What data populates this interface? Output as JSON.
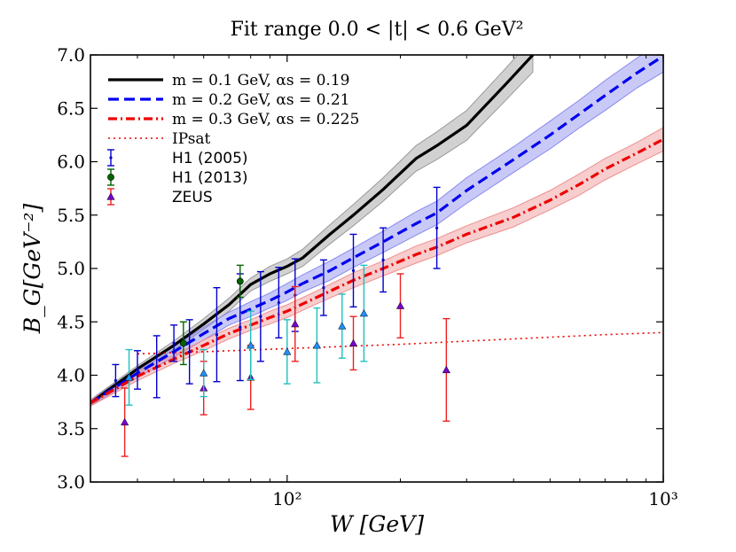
{
  "chart_data": {
    "type": "line",
    "title": "Fit range 0.0 < |t| < 0.6 GeV²",
    "xlabel": "W [GeV]",
    "ylabel": "B_G[GeV⁻²]",
    "xscale": "log",
    "xlim": [
      30,
      1000
    ],
    "ylim": [
      3.0,
      7.0
    ],
    "grid": false,
    "legend_position": "top-left",
    "x_ticks": [
      {
        "value": 100,
        "label": "10²"
      },
      {
        "value": 1000,
        "label": "10³"
      }
    ],
    "y_ticks": [
      3.0,
      3.5,
      4.0,
      4.5,
      5.0,
      5.5,
      6.0,
      6.5,
      7.0
    ],
    "y_tick_labels": [
      "3.0",
      "3.5",
      "4.0",
      "4.5",
      "5.0",
      "5.5",
      "6.0",
      "6.5",
      "7.0"
    ],
    "series": [
      {
        "name": "m = 0.1 GeV, αs = 0.19",
        "color": "#000000",
        "style": "solid",
        "band_color": "#9a9a9a",
        "x": [
          30,
          40,
          50,
          60,
          70,
          80,
          90,
          100,
          110,
          130,
          150,
          180,
          220,
          250,
          300,
          380,
          450
        ],
        "y": [
          3.74,
          4.06,
          4.28,
          4.48,
          4.66,
          4.85,
          4.95,
          5.02,
          5.1,
          5.32,
          5.5,
          5.74,
          6.03,
          6.15,
          6.34,
          6.72,
          7.0
        ],
        "band": [
          0.03,
          0.03,
          0.04,
          0.05,
          0.06,
          0.06,
          0.07,
          0.07,
          0.08,
          0.09,
          0.1,
          0.11,
          0.12,
          0.13,
          0.14,
          0.15,
          0.16
        ]
      },
      {
        "name": "m = 0.2 GeV, αs = 0.21",
        "color": "#0000ee",
        "style": "dashed",
        "band_color": "#8888ee",
        "x": [
          30,
          40,
          50,
          60,
          70,
          80,
          90,
          100,
          110,
          130,
          150,
          180,
          220,
          250,
          300,
          400,
          500,
          600,
          700,
          850,
          1000
        ],
        "y": [
          3.74,
          4.02,
          4.22,
          4.39,
          4.53,
          4.62,
          4.7,
          4.78,
          4.86,
          4.98,
          5.1,
          5.25,
          5.42,
          5.52,
          5.73,
          6.02,
          6.25,
          6.45,
          6.62,
          6.83,
          6.99
        ],
        "band": [
          0.03,
          0.04,
          0.05,
          0.06,
          0.06,
          0.07,
          0.07,
          0.08,
          0.08,
          0.09,
          0.09,
          0.1,
          0.11,
          0.11,
          0.12,
          0.12,
          0.13,
          0.13,
          0.14,
          0.14,
          0.15
        ]
      },
      {
        "name": "m = 0.3 GeV, αs = 0.225",
        "color": "#ee0000",
        "style": "dashdot",
        "band_color": "#ee9090",
        "x": [
          30,
          40,
          50,
          60,
          70,
          80,
          90,
          100,
          120,
          150,
          180,
          220,
          250,
          300,
          400,
          500,
          600,
          700,
          850,
          1000
        ],
        "y": [
          3.74,
          3.99,
          4.15,
          4.28,
          4.39,
          4.47,
          4.54,
          4.6,
          4.73,
          4.89,
          5.0,
          5.13,
          5.2,
          5.32,
          5.48,
          5.64,
          5.79,
          5.93,
          6.08,
          6.21
        ],
        "band": [
          0.03,
          0.04,
          0.04,
          0.05,
          0.05,
          0.05,
          0.06,
          0.06,
          0.06,
          0.07,
          0.07,
          0.08,
          0.08,
          0.08,
          0.09,
          0.09,
          0.1,
          0.1,
          0.1,
          0.11
        ]
      },
      {
        "name": "IPsat",
        "color": "#ee0000",
        "style": "dotted",
        "x": [
          40,
          60,
          100,
          200,
          400,
          700,
          1000
        ],
        "y": [
          4.2,
          4.22,
          4.25,
          4.29,
          4.34,
          4.38,
          4.4
        ]
      }
    ],
    "data_points": [
      {
        "name": "H1 (2005)",
        "marker": "dot",
        "color": "#0000cc",
        "points": [
          {
            "x": 35,
            "y": 3.95,
            "err": 0.15
          },
          {
            "x": 40,
            "y": 4.05,
            "err": 0.18
          },
          {
            "x": 45,
            "y": 4.08,
            "err": 0.29
          },
          {
            "x": 50,
            "y": 4.3,
            "err": 0.17
          },
          {
            "x": 55,
            "y": 4.22,
            "err": 0.3
          },
          {
            "x": 65,
            "y": 4.38,
            "err": 0.44
          },
          {
            "x": 75,
            "y": 4.45,
            "err": 0.5
          },
          {
            "x": 85,
            "y": 4.55,
            "err": 0.42
          },
          {
            "x": 95,
            "y": 4.68,
            "err": 0.33
          },
          {
            "x": 105,
            "y": 4.75,
            "err": 0.34
          },
          {
            "x": 125,
            "y": 4.82,
            "err": 0.26
          },
          {
            "x": 150,
            "y": 4.98,
            "err": 0.34
          },
          {
            "x": 180,
            "y": 5.08,
            "err": 0.3
          },
          {
            "x": 250,
            "y": 5.38,
            "err": 0.38
          }
        ]
      },
      {
        "name": "H1 (2013)",
        "marker": "circle",
        "color": "#006400",
        "points": [
          {
            "x": 53,
            "y": 4.3,
            "err": 0.2
          },
          {
            "x": 75,
            "y": 4.88,
            "err": 0.15
          }
        ]
      },
      {
        "name": "ZEUS",
        "marker": "triangle",
        "color": "#7a00cc",
        "errcolor": "#ee2020",
        "points": [
          {
            "x": 37,
            "y": 3.56,
            "err": 0.32
          },
          {
            "x": 60,
            "y": 3.88,
            "err": 0.25
          },
          {
            "x": 80,
            "y": 3.98,
            "err": 0.3
          },
          {
            "x": 105,
            "y": 4.48,
            "err": 0.35
          },
          {
            "x": 150,
            "y": 4.3,
            "err": 0.25
          },
          {
            "x": 200,
            "y": 4.65,
            "err": 0.3
          },
          {
            "x": 265,
            "y": 4.05,
            "err": 0.48
          }
        ]
      },
      {
        "name": "",
        "marker": "triangle",
        "color": "#1e90ff",
        "errcolor": "#20c0c0",
        "points": [
          {
            "x": 38,
            "y": 3.98,
            "err": 0.26
          },
          {
            "x": 60,
            "y": 4.02,
            "err": 0.22
          },
          {
            "x": 80,
            "y": 4.28,
            "err": 0.32
          },
          {
            "x": 100,
            "y": 4.22,
            "err": 0.3
          },
          {
            "x": 120,
            "y": 4.28,
            "err": 0.35
          },
          {
            "x": 140,
            "y": 4.46,
            "err": 0.3
          },
          {
            "x": 160,
            "y": 4.58,
            "err": 0.45
          }
        ]
      }
    ]
  }
}
